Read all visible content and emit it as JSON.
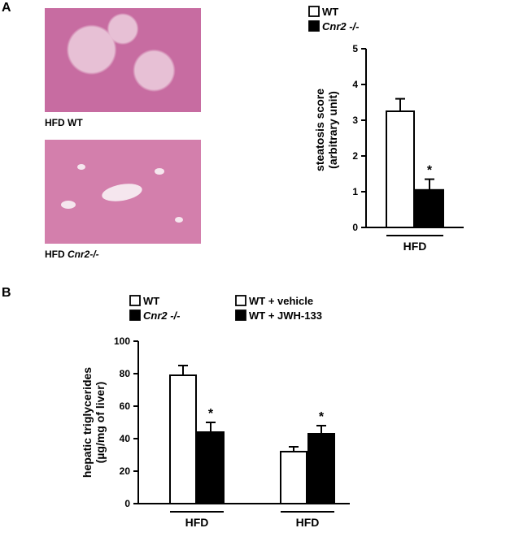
{
  "panelA": {
    "label": "A",
    "images": {
      "top_label": "HFD WT",
      "bottom_label": "HFD Cnr2-/-"
    },
    "legend": {
      "wt": "WT",
      "cnr2": "Cnr2 -/-"
    },
    "chart": {
      "type": "bar",
      "y_title_line1": "steatosis   score",
      "y_title_line2": "(arbitrary unit)",
      "ylim": [
        0,
        5
      ],
      "ytick_step": 1,
      "yticks": [
        0,
        1,
        2,
        3,
        4,
        5
      ],
      "x_group": "HFD",
      "bars": [
        {
          "label": "WT",
          "value": 3.25,
          "error": 0.35,
          "fill": "#ffffff",
          "sig": ""
        },
        {
          "label": "Cnr2 -/-",
          "value": 1.05,
          "error": 0.3,
          "fill": "#000000",
          "sig": "*"
        }
      ],
      "bar_width": 0.7,
      "title_fontsize": 14,
      "tick_fontsize": 12,
      "background_color": "#ffffff",
      "axis_color": "#000000"
    }
  },
  "panelB": {
    "label": "B",
    "legend": {
      "wt": "WT",
      "cnr2": "Cnr2 -/-",
      "wt_vehicle": "WT + vehicle",
      "wt_jwh": "WT + JWH-133"
    },
    "chart": {
      "type": "grouped-bar",
      "y_title_line1": "hepatic triglycerides",
      "y_title_line2": "(µg/mg of liver)",
      "ylim": [
        0,
        100
      ],
      "ytick_step": 20,
      "yticks": [
        0,
        20,
        40,
        60,
        80,
        100
      ],
      "groups": [
        {
          "x_label": "HFD",
          "bars": [
            {
              "label": "WT",
              "value": 79,
              "error": 6,
              "fill": "#ffffff",
              "sig": ""
            },
            {
              "label": "Cnr2 -/-",
              "value": 44,
              "error": 6,
              "fill": "#000000",
              "sig": "*"
            }
          ]
        },
        {
          "x_label": "HFD",
          "bars": [
            {
              "label": "WT + vehicle",
              "value": 32,
              "error": 3,
              "fill": "#ffffff",
              "sig": ""
            },
            {
              "label": "WT + JWH-133",
              "value": 43,
              "error": 5,
              "fill": "#000000",
              "sig": "*"
            }
          ]
        }
      ],
      "bar_width": 0.7,
      "title_fontsize": 14,
      "tick_fontsize": 12,
      "background_color": "#ffffff",
      "axis_color": "#000000"
    }
  }
}
